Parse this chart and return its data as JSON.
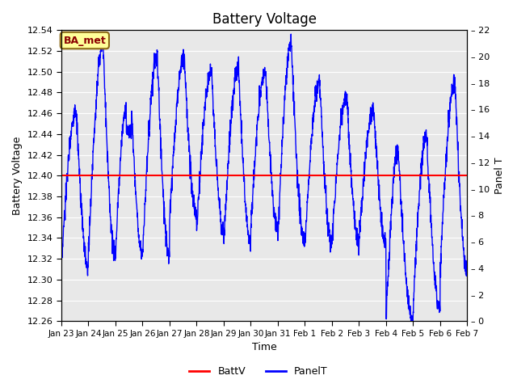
{
  "title": "Battery Voltage",
  "xlabel": "Time",
  "ylabel_left": "Battery Voltage",
  "ylabel_right": "Panel T",
  "annotation_text": "BA_met",
  "annotation_bg": "#FFFF99",
  "annotation_border": "#8B6914",
  "annotation_text_color": "#8B0000",
  "batt_voltage": 12.4,
  "batt_color": "red",
  "panel_color": "blue",
  "left_ylim": [
    12.26,
    12.54
  ],
  "right_ylim": [
    0,
    22
  ],
  "left_yticks": [
    12.26,
    12.28,
    12.3,
    12.32,
    12.34,
    12.36,
    12.38,
    12.4,
    12.42,
    12.44,
    12.46,
    12.48,
    12.5,
    12.52,
    12.54
  ],
  "right_yticks": [
    0,
    2,
    4,
    6,
    8,
    10,
    12,
    14,
    16,
    18,
    20,
    22
  ],
  "xtick_labels": [
    "Jan 23",
    "Jan 24",
    "Jan 25",
    "Jan 26",
    "Jan 27",
    "Jan 28",
    "Jan 29",
    "Jan 30",
    "Jan 31",
    "Feb 1",
    "Feb 2",
    "Feb 3",
    "Feb 4",
    "Feb 5",
    "Feb 6",
    "Feb 7"
  ],
  "bg_color": "#E8E8E8",
  "grid_color": "white",
  "legend_batt": "BattV",
  "legend_panel": "PanelT",
  "figsize": [
    6.4,
    4.8
  ],
  "dpi": 100
}
